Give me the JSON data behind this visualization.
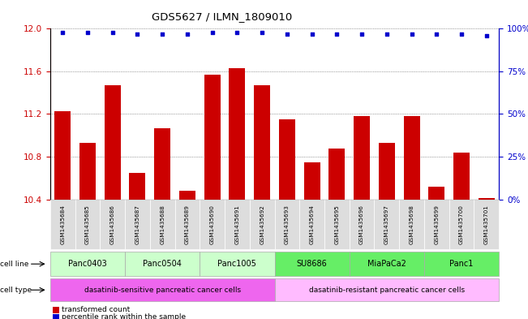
{
  "title": "GDS5627 / ILMN_1809010",
  "samples": [
    "GSM1435684",
    "GSM1435685",
    "GSM1435686",
    "GSM1435687",
    "GSM1435688",
    "GSM1435689",
    "GSM1435690",
    "GSM1435691",
    "GSM1435692",
    "GSM1435693",
    "GSM1435694",
    "GSM1435695",
    "GSM1435696",
    "GSM1435697",
    "GSM1435698",
    "GSM1435699",
    "GSM1435700",
    "GSM1435701"
  ],
  "bar_values": [
    11.23,
    10.93,
    11.47,
    10.65,
    11.07,
    10.48,
    11.57,
    11.63,
    11.47,
    11.15,
    10.75,
    10.88,
    11.18,
    10.93,
    11.18,
    10.52,
    10.84,
    10.41
  ],
  "percentile_values": [
    98,
    98,
    98,
    97,
    97,
    97,
    98,
    98,
    98,
    97,
    97,
    97,
    97,
    97,
    97,
    97,
    97,
    96
  ],
  "bar_color": "#cc0000",
  "percentile_color": "#0000cc",
  "ylim_left": [
    10.4,
    12.0
  ],
  "ylim_right": [
    0,
    100
  ],
  "yticks_left": [
    10.4,
    10.8,
    11.2,
    11.6,
    12.0
  ],
  "yticks_right": [
    0,
    25,
    50,
    75,
    100
  ],
  "ytick_labels_right": [
    "0%",
    "25%",
    "50%",
    "75%",
    "100%"
  ],
  "cell_lines": [
    {
      "label": "Panc0403",
      "start": 0,
      "end": 2,
      "color": "#ccffcc"
    },
    {
      "label": "Panc0504",
      "start": 3,
      "end": 5,
      "color": "#ccffcc"
    },
    {
      "label": "Panc1005",
      "start": 6,
      "end": 8,
      "color": "#ccffcc"
    },
    {
      "label": "SU8686",
      "start": 9,
      "end": 11,
      "color": "#66ee66"
    },
    {
      "label": "MiaPaCa2",
      "start": 12,
      "end": 14,
      "color": "#66ee66"
    },
    {
      "label": "Panc1",
      "start": 15,
      "end": 17,
      "color": "#66ee66"
    }
  ],
  "cell_types": [
    {
      "label": "dasatinib-sensitive pancreatic cancer cells",
      "start": 0,
      "end": 8,
      "color": "#ee66ee"
    },
    {
      "label": "dasatinib-resistant pancreatic cancer cells",
      "start": 9,
      "end": 17,
      "color": "#ffbbff"
    }
  ],
  "legend_items": [
    {
      "color": "#cc0000",
      "label": "transformed count"
    },
    {
      "color": "#0000cc",
      "label": "percentile rank within the sample"
    }
  ],
  "background_color": "#ffffff",
  "plot_bg_color": "#ffffff",
  "grid_color": "#555555",
  "label_color_left": "#cc0000",
  "label_color_right": "#0000cc",
  "cell_line_label_color": "#333333",
  "sample_bg_color": "#dddddd"
}
